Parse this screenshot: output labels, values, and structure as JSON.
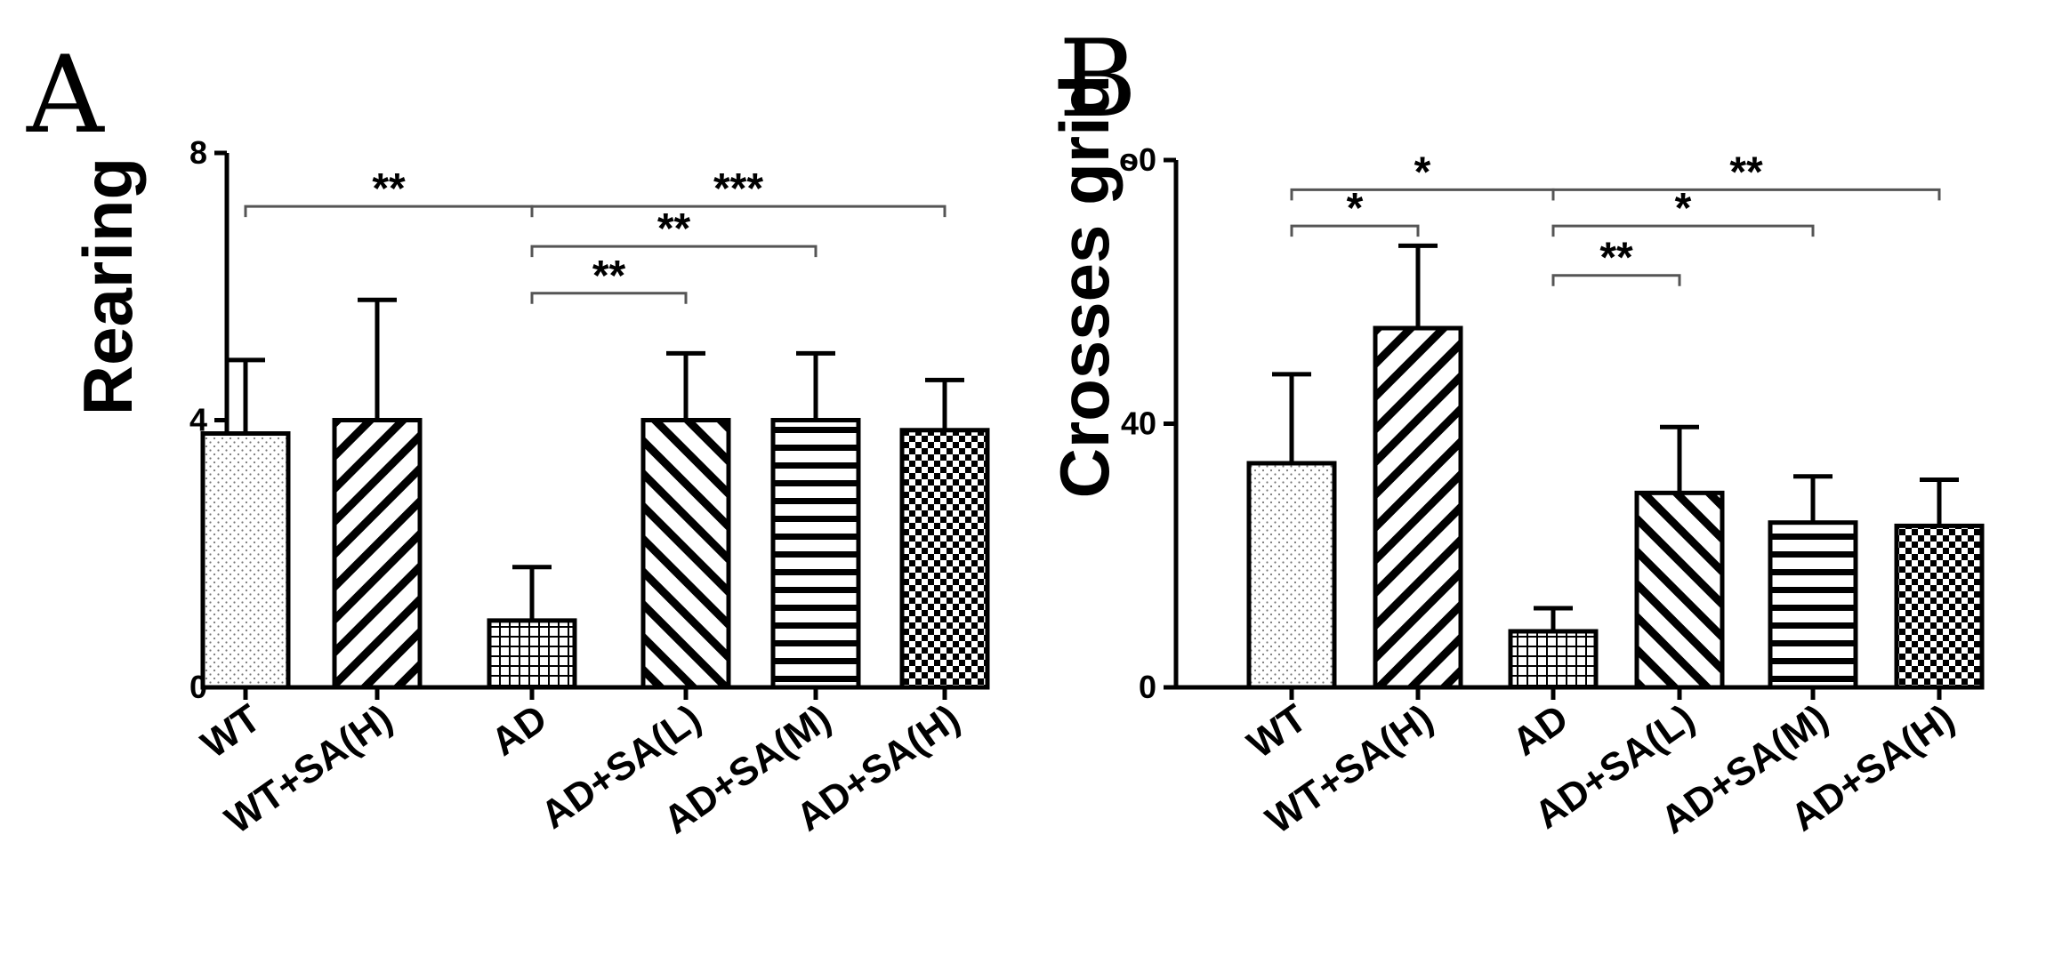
{
  "chart_data": [
    {
      "type": "bar",
      "panel": "A",
      "title": "",
      "xlabel": "",
      "ylabel": "Rearing",
      "ylim": [
        0,
        8
      ],
      "yticks": [
        "0",
        "4",
        "8"
      ],
      "categories": [
        "WT",
        "WT+SA(H)",
        "AD",
        "AD+SA(L)",
        "AD+SA(M)",
        "AD+SA(H)"
      ],
      "values": [
        3.8,
        4.0,
        1.0,
        4.0,
        4.0,
        3.85
      ],
      "errors": [
        1.1,
        1.8,
        0.8,
        1.0,
        1.0,
        0.75
      ],
      "patterns": [
        "dots",
        "diag-right",
        "grid",
        "diag-left",
        "horizontal",
        "checker"
      ],
      "significance": [
        {
          "from": 0,
          "to": 2,
          "label": "**",
          "y": 7.2
        },
        {
          "from": 2,
          "to": 5,
          "label": "***",
          "y": 7.2
        },
        {
          "from": 2,
          "to": 4,
          "label": "**",
          "y": 6.6
        },
        {
          "from": 2,
          "to": 3,
          "label": "**",
          "y": 5.9
        }
      ]
    },
    {
      "type": "bar",
      "panel": "B",
      "title": "",
      "xlabel": "",
      "ylabel": "Crosses grid",
      "ylim": [
        0,
        80
      ],
      "yticks": [
        "0",
        "40",
        "ѳ0"
      ],
      "categories": [
        "WT",
        "WT+SA(H)",
        "AD",
        "AD+SA(L)",
        "AD+SA(M)",
        "AD+SA(H)"
      ],
      "values": [
        34,
        54.5,
        8.5,
        29.5,
        25,
        24.5
      ],
      "errors": [
        13.5,
        12.5,
        3.5,
        10,
        7,
        7
      ],
      "patterns": [
        "dots",
        "diag-right",
        "grid",
        "diag-left",
        "horizontal",
        "checker"
      ],
      "significance": [
        {
          "from": 0,
          "to": 2,
          "label": "*",
          "y": 75.5
        },
        {
          "from": 0,
          "to": 1,
          "label": "*",
          "y": 70
        },
        {
          "from": 2,
          "to": 5,
          "label": "**",
          "y": 75.5
        },
        {
          "from": 2,
          "to": 4,
          "label": "*",
          "y": 70
        },
        {
          "from": 2,
          "to": 3,
          "label": "**",
          "y": 62.5
        }
      ]
    }
  ]
}
